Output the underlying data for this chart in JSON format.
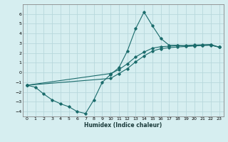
{
  "xlabel": "Humidex (Indice chaleur)",
  "background_color": "#d6eef0",
  "grid_color": "#b8d8dc",
  "line_color": "#1a6b6b",
  "xlim": [
    -0.5,
    23.5
  ],
  "ylim": [
    -4.5,
    7.0
  ],
  "xticks": [
    0,
    1,
    2,
    3,
    4,
    5,
    6,
    7,
    8,
    9,
    10,
    11,
    12,
    13,
    14,
    15,
    16,
    17,
    18,
    19,
    20,
    21,
    22,
    23
  ],
  "yticks": [
    -4,
    -3,
    -2,
    -1,
    0,
    1,
    2,
    3,
    4,
    5,
    6
  ],
  "line1_x": [
    0,
    1,
    2,
    3,
    4,
    5,
    6,
    7,
    8,
    9,
    10,
    11,
    12,
    13,
    14,
    15,
    16,
    17,
    18,
    19,
    20,
    21,
    22,
    23
  ],
  "line1_y": [
    -1.3,
    -1.5,
    -2.2,
    -2.8,
    -3.2,
    -3.5,
    -4.0,
    -4.2,
    -2.8,
    -1.0,
    -0.2,
    0.5,
    2.2,
    4.5,
    6.2,
    4.8,
    3.5,
    2.8,
    2.8,
    2.7,
    2.8,
    2.8,
    2.8,
    2.6
  ],
  "line2_x": [
    0,
    10,
    11,
    12,
    13,
    14,
    15,
    16,
    17,
    18,
    19,
    20,
    21,
    22,
    23
  ],
  "line2_y": [
    -1.3,
    -0.1,
    0.3,
    0.9,
    1.6,
    2.1,
    2.5,
    2.65,
    2.7,
    2.75,
    2.78,
    2.82,
    2.85,
    2.88,
    2.6
  ],
  "line3_x": [
    0,
    10,
    11,
    12,
    13,
    14,
    15,
    16,
    17,
    18,
    19,
    20,
    21,
    22,
    23
  ],
  "line3_y": [
    -1.3,
    -0.6,
    -0.1,
    0.4,
    1.1,
    1.7,
    2.2,
    2.45,
    2.55,
    2.62,
    2.67,
    2.72,
    2.77,
    2.82,
    2.6
  ]
}
